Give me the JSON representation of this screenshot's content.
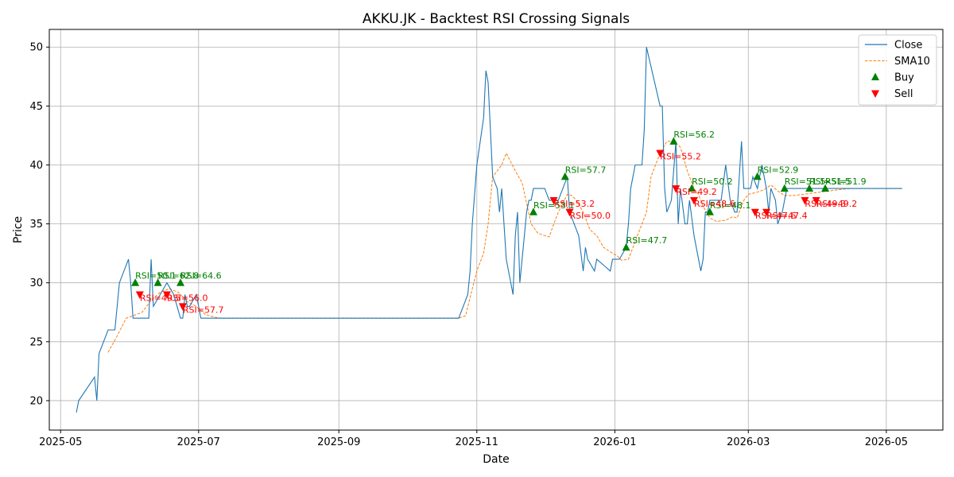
{
  "chart_data": {
    "type": "line",
    "title": "AKKU.JK - Backtest RSI Crossing Signals",
    "xlabel": "Date",
    "ylabel": "Price",
    "xlim": [
      "2025-04-26",
      "2026-05-26"
    ],
    "ylim": [
      17.5,
      51.5
    ],
    "x_ticks": [
      "2025-05",
      "2025-07",
      "2025-09",
      "2025-11",
      "2026-01",
      "2026-03",
      "2026-05"
    ],
    "x_tick_dates": [
      "2025-05-01",
      "2025-07-01",
      "2025-09-01",
      "2025-11-01",
      "2026-01-01",
      "2026-03-01",
      "2026-05-01"
    ],
    "y_ticks": [
      20,
      25,
      30,
      35,
      40,
      45,
      50
    ],
    "grid": true,
    "legend_position": "top-right",
    "colors": {
      "close": "#1f77b4",
      "sma": "#ff7f0e",
      "buy": "#008000",
      "sell": "#ff0000"
    },
    "legend": [
      {
        "label": "Close",
        "kind": "line"
      },
      {
        "label": "SMA10",
        "kind": "dashed"
      },
      {
        "label": "Buy",
        "kind": "up-marker"
      },
      {
        "label": "Sell",
        "kind": "down-marker"
      }
    ],
    "close": [
      [
        "2025-05-08",
        19
      ],
      [
        "2025-05-09",
        20
      ],
      [
        "2025-05-16",
        22
      ],
      [
        "2025-05-17",
        20
      ],
      [
        "2025-05-18",
        24
      ],
      [
        "2025-05-22",
        26
      ],
      [
        "2025-05-25",
        26
      ],
      [
        "2025-05-27",
        30
      ],
      [
        "2025-05-31",
        32
      ],
      [
        "2025-06-01",
        30
      ],
      [
        "2025-06-02",
        27
      ],
      [
        "2025-06-09",
        27
      ],
      [
        "2025-06-10",
        32
      ],
      [
        "2025-06-11",
        28
      ],
      [
        "2025-06-17",
        30
      ],
      [
        "2025-06-20",
        29
      ],
      [
        "2025-06-23",
        27
      ],
      [
        "2025-06-24",
        27
      ],
      [
        "2025-06-25",
        29
      ],
      [
        "2025-06-26",
        28
      ],
      [
        "2025-06-27",
        28
      ],
      [
        "2025-06-30",
        29
      ],
      [
        "2025-07-01",
        28
      ],
      [
        "2025-07-02",
        27
      ],
      [
        "2025-10-24",
        27
      ],
      [
        "2025-10-28",
        29
      ],
      [
        "2025-10-29",
        31
      ],
      [
        "2025-10-30",
        35
      ],
      [
        "2025-11-01",
        40
      ],
      [
        "2025-11-04",
        44
      ],
      [
        "2025-11-05",
        48
      ],
      [
        "2025-11-06",
        47
      ],
      [
        "2025-11-08",
        39
      ],
      [
        "2025-11-10",
        38
      ],
      [
        "2025-11-11",
        36
      ],
      [
        "2025-11-12",
        38
      ],
      [
        "2025-11-14",
        32
      ],
      [
        "2025-11-16",
        30
      ],
      [
        "2025-11-17",
        29
      ],
      [
        "2025-11-18",
        34
      ],
      [
        "2025-11-19",
        36
      ],
      [
        "2025-11-20",
        30
      ],
      [
        "2025-11-23",
        36
      ],
      [
        "2025-11-24",
        37
      ],
      [
        "2025-11-25",
        37
      ],
      [
        "2025-11-26",
        38
      ],
      [
        "2025-11-28",
        38
      ],
      [
        "2025-12-01",
        38
      ],
      [
        "2025-12-03",
        37
      ],
      [
        "2025-12-07",
        37
      ],
      [
        "2025-12-11",
        39
      ],
      [
        "2025-12-12",
        36
      ],
      [
        "2025-12-16",
        34
      ],
      [
        "2025-12-18",
        31
      ],
      [
        "2025-12-19",
        33
      ],
      [
        "2025-12-20",
        32
      ],
      [
        "2025-12-23",
        31
      ],
      [
        "2025-12-24",
        32
      ],
      [
        "2025-12-30",
        31
      ],
      [
        "2025-12-31",
        32
      ],
      [
        "2026-01-03",
        32
      ],
      [
        "2026-01-06",
        33
      ],
      [
        "2026-01-07",
        35
      ],
      [
        "2026-01-08",
        38
      ],
      [
        "2026-01-10",
        40
      ],
      [
        "2026-01-13",
        40
      ],
      [
        "2026-01-14",
        43
      ],
      [
        "2026-01-15",
        50
      ],
      [
        "2026-01-21",
        45
      ],
      [
        "2026-01-22",
        45
      ],
      [
        "2026-01-23",
        38
      ],
      [
        "2026-01-24",
        36
      ],
      [
        "2026-01-26",
        37
      ],
      [
        "2026-01-28",
        42
      ],
      [
        "2026-01-29",
        35
      ],
      [
        "2026-01-30",
        38
      ],
      [
        "2026-02-01",
        35
      ],
      [
        "2026-02-02",
        35
      ],
      [
        "2026-02-03",
        37
      ],
      [
        "2026-02-05",
        34
      ],
      [
        "2026-02-08",
        31
      ],
      [
        "2026-02-09",
        32
      ],
      [
        "2026-02-10",
        36
      ],
      [
        "2026-02-11",
        36
      ],
      [
        "2026-02-12",
        37
      ],
      [
        "2026-02-16",
        37
      ],
      [
        "2026-02-17",
        37
      ],
      [
        "2026-02-19",
        40
      ],
      [
        "2026-02-21",
        37
      ],
      [
        "2026-02-23",
        36
      ],
      [
        "2026-02-24",
        36
      ],
      [
        "2026-02-26",
        42
      ],
      [
        "2026-02-27",
        38
      ],
      [
        "2026-03-02",
        38
      ],
      [
        "2026-03-03",
        39
      ],
      [
        "2026-03-05",
        38
      ],
      [
        "2026-03-07",
        40
      ],
      [
        "2026-03-09",
        38
      ],
      [
        "2026-03-10",
        36
      ],
      [
        "2026-03-11",
        38
      ],
      [
        "2026-03-13",
        37
      ],
      [
        "2026-03-14",
        35
      ],
      [
        "2026-03-16",
        36
      ],
      [
        "2026-03-18",
        38
      ],
      [
        "2026-03-25",
        38
      ],
      [
        "2026-03-28",
        38
      ],
      [
        "2026-03-30",
        38
      ],
      [
        "2026-04-01",
        38
      ],
      [
        "2026-04-15",
        38
      ],
      [
        "2026-05-08",
        38
      ]
    ],
    "sma10": [
      [
        "2025-05-22",
        24.1
      ],
      [
        "2025-05-26",
        25.5
      ],
      [
        "2025-05-30",
        27
      ],
      [
        "2025-06-02",
        27.2
      ],
      [
        "2025-06-06",
        27.5
      ],
      [
        "2025-06-10",
        28.5
      ],
      [
        "2025-06-14",
        29.2
      ],
      [
        "2025-06-18",
        29.5
      ],
      [
        "2025-06-22",
        29.2
      ],
      [
        "2025-06-26",
        28.4
      ],
      [
        "2025-06-30",
        28.0
      ],
      [
        "2025-07-04",
        27.3
      ],
      [
        "2025-07-10",
        27
      ],
      [
        "2025-10-24",
        27
      ],
      [
        "2025-10-27",
        27.2
      ],
      [
        "2025-10-30",
        29.5
      ],
      [
        "2025-11-01",
        31
      ],
      [
        "2025-11-04",
        32.5
      ],
      [
        "2025-11-06",
        35
      ],
      [
        "2025-11-08",
        39
      ],
      [
        "2025-11-12",
        40
      ],
      [
        "2025-11-14",
        41
      ],
      [
        "2025-11-18",
        39.5
      ],
      [
        "2025-11-21",
        38.5
      ],
      [
        "2025-11-25",
        35
      ],
      [
        "2025-11-28",
        34.2
      ],
      [
        "2025-12-01",
        34
      ],
      [
        "2025-12-03",
        33.9
      ],
      [
        "2025-12-05",
        35
      ],
      [
        "2025-12-07",
        36
      ],
      [
        "2025-12-11",
        37.5
      ],
      [
        "2025-12-13",
        37.4
      ],
      [
        "2025-12-15",
        37
      ],
      [
        "2025-12-18",
        36
      ],
      [
        "2025-12-21",
        34.5
      ],
      [
        "2025-12-24",
        34
      ],
      [
        "2025-12-27",
        33
      ],
      [
        "2025-12-31",
        32.5
      ],
      [
        "2026-01-02",
        32.3
      ],
      [
        "2026-01-04",
        31.9
      ],
      [
        "2026-01-07",
        32
      ],
      [
        "2026-01-10",
        33.5
      ],
      [
        "2026-01-12",
        34.5
      ],
      [
        "2026-01-15",
        36
      ],
      [
        "2026-01-17",
        39
      ],
      [
        "2026-01-21",
        41
      ],
      [
        "2026-01-24",
        42
      ],
      [
        "2026-01-27",
        42
      ],
      [
        "2026-01-30",
        41.5
      ],
      [
        "2026-02-02",
        39.5
      ],
      [
        "2026-02-05",
        38
      ],
      [
        "2026-02-07",
        37.5
      ],
      [
        "2026-02-09",
        36.5
      ],
      [
        "2026-02-12",
        35.5
      ],
      [
        "2026-02-15",
        35.2
      ],
      [
        "2026-02-19",
        35.3
      ],
      [
        "2026-02-22",
        35.6
      ],
      [
        "2026-02-24",
        35.5
      ],
      [
        "2026-02-27",
        37
      ],
      [
        "2026-03-01",
        37.5
      ],
      [
        "2026-03-05",
        37.7
      ],
      [
        "2026-03-08",
        37.9
      ],
      [
        "2026-03-11",
        38.3
      ],
      [
        "2026-03-14",
        37.8
      ],
      [
        "2026-03-17",
        37.4
      ],
      [
        "2026-03-21",
        37.4
      ],
      [
        "2026-03-25",
        37.5
      ],
      [
        "2026-03-29",
        37.6
      ],
      [
        "2026-04-02",
        37.7
      ],
      [
        "2026-04-06",
        37.8
      ],
      [
        "2026-04-10",
        37.9
      ],
      [
        "2026-04-15",
        38
      ],
      [
        "2026-05-08",
        38
      ]
    ],
    "buy_signals": [
      {
        "date": "2025-06-03",
        "price": 30,
        "label": "RSI=50.1"
      },
      {
        "date": "2025-06-13",
        "price": 30,
        "label": "RSI=62.8"
      },
      {
        "date": "2025-06-23",
        "price": 30,
        "label": "RSI=64.6"
      },
      {
        "date": "2025-11-26",
        "price": 36,
        "label": "RSI=53.1"
      },
      {
        "date": "2025-12-10",
        "price": 39,
        "label": "RSI=57.7"
      },
      {
        "date": "2026-01-06",
        "price": 33,
        "label": "RSI=47.7"
      },
      {
        "date": "2026-01-27",
        "price": 42,
        "label": "RSI=56.2"
      },
      {
        "date": "2026-02-04",
        "price": 38,
        "label": "RSI=50.2"
      },
      {
        "date": "2026-02-12",
        "price": 36,
        "label": "RSI=48.1"
      },
      {
        "date": "2026-03-05",
        "price": 39,
        "label": "RSI=52.9"
      },
      {
        "date": "2026-03-17",
        "price": 38,
        "label": "RSI=51.5"
      },
      {
        "date": "2026-03-28",
        "price": 38,
        "label": "RSI=51.5"
      },
      {
        "date": "2026-04-04",
        "price": 38,
        "label": "RSI=51.9"
      }
    ],
    "sell_signals": [
      {
        "date": "2025-06-05",
        "price": 29,
        "label": "RSI=49.5"
      },
      {
        "date": "2025-06-17",
        "price": 29,
        "label": "RSI=56.0"
      },
      {
        "date": "2025-06-24",
        "price": 28,
        "label": "RSI=57.7"
      },
      {
        "date": "2025-12-05",
        "price": 37,
        "label": "RSI=53.2"
      },
      {
        "date": "2025-12-12",
        "price": 36,
        "label": "RSI=50.0"
      },
      {
        "date": "2026-01-21",
        "price": 41,
        "label": "RSI=55.2"
      },
      {
        "date": "2026-01-28",
        "price": 38,
        "label": "RSI=49.2"
      },
      {
        "date": "2026-02-05",
        "price": 37,
        "label": "RSI=48.6"
      },
      {
        "date": "2026-03-04",
        "price": 36,
        "label": "RSI=47.6"
      },
      {
        "date": "2026-03-09",
        "price": 36,
        "label": "RSI=47.4"
      },
      {
        "date": "2026-03-26",
        "price": 37,
        "label": "RSI=49.3"
      },
      {
        "date": "2026-03-31",
        "price": 37,
        "label": "RSI=49.2"
      }
    ]
  }
}
